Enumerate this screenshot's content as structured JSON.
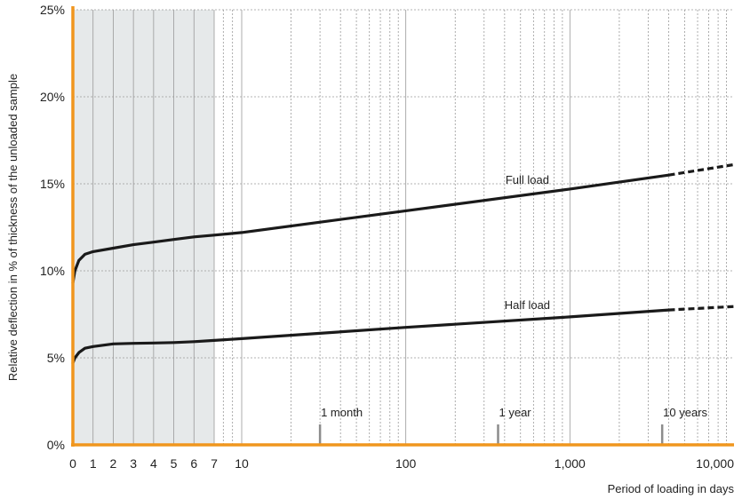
{
  "chart_data": {
    "type": "line",
    "xlabel": "Period of loading in days",
    "ylabel": "Relative deflection  in % of thickness of the unloaded sample",
    "xscale": "linear from 0 to 7, then log from 7 to 10000",
    "xlim": [
      0,
      10000
    ],
    "ylim": [
      0,
      25
    ],
    "shaded_region_x": [
      0,
      7
    ],
    "x_tick_labels": [
      "0",
      "1",
      "2",
      "3",
      "4",
      "5",
      "6",
      "7",
      "10",
      "100",
      "1,000",
      "10,000"
    ],
    "x_tick_values": [
      0,
      1,
      2,
      3,
      4,
      5,
      6,
      7,
      10,
      100,
      1000,
      10000
    ],
    "y_tick_labels": [
      "0%",
      "5%",
      "10%",
      "15%",
      "20%",
      "25%"
    ],
    "y_tick_values": [
      0,
      5,
      10,
      15,
      20,
      25
    ],
    "grid": true,
    "series": [
      {
        "name": "Full load",
        "solid_until_x": 4000,
        "points": [
          {
            "x": 0,
            "y": 9.3
          },
          {
            "x": 0.1,
            "y": 10.0
          },
          {
            "x": 0.3,
            "y": 10.6
          },
          {
            "x": 0.6,
            "y": 10.95
          },
          {
            "x": 1,
            "y": 11.1
          },
          {
            "x": 2,
            "y": 11.3
          },
          {
            "x": 3,
            "y": 11.5
          },
          {
            "x": 4,
            "y": 11.65
          },
          {
            "x": 5,
            "y": 11.8
          },
          {
            "x": 6,
            "y": 11.95
          },
          {
            "x": 7,
            "y": 12.05
          },
          {
            "x": 10,
            "y": 12.2
          },
          {
            "x": 100,
            "y": 13.45
          },
          {
            "x": 1000,
            "y": 14.7
          },
          {
            "x": 4000,
            "y": 15.5
          },
          {
            "x": 10000,
            "y": 16.1
          }
        ]
      },
      {
        "name": "Half load",
        "solid_until_x": 4000,
        "points": [
          {
            "x": 0,
            "y": 4.7
          },
          {
            "x": 0.1,
            "y": 5.0
          },
          {
            "x": 0.3,
            "y": 5.3
          },
          {
            "x": 0.6,
            "y": 5.55
          },
          {
            "x": 1,
            "y": 5.65
          },
          {
            "x": 2,
            "y": 5.8
          },
          {
            "x": 3,
            "y": 5.83
          },
          {
            "x": 4,
            "y": 5.85
          },
          {
            "x": 5,
            "y": 5.88
          },
          {
            "x": 6,
            "y": 5.93
          },
          {
            "x": 7,
            "y": 6.0
          },
          {
            "x": 10,
            "y": 6.1
          },
          {
            "x": 100,
            "y": 6.75
          },
          {
            "x": 1000,
            "y": 7.35
          },
          {
            "x": 4000,
            "y": 7.75
          },
          {
            "x": 10000,
            "y": 7.95
          }
        ]
      }
    ],
    "annotations": [
      {
        "text": "1 month",
        "x": 30
      },
      {
        "text": "1 year",
        "x": 365
      },
      {
        "text": "10 years",
        "x": 3650
      }
    ]
  },
  "colors": {
    "axis": "#f0961e",
    "shade": "#e6e9ea",
    "line": "#1a1a1a",
    "grid": "#9a9a9a",
    "marker": "#8c8c8c"
  }
}
